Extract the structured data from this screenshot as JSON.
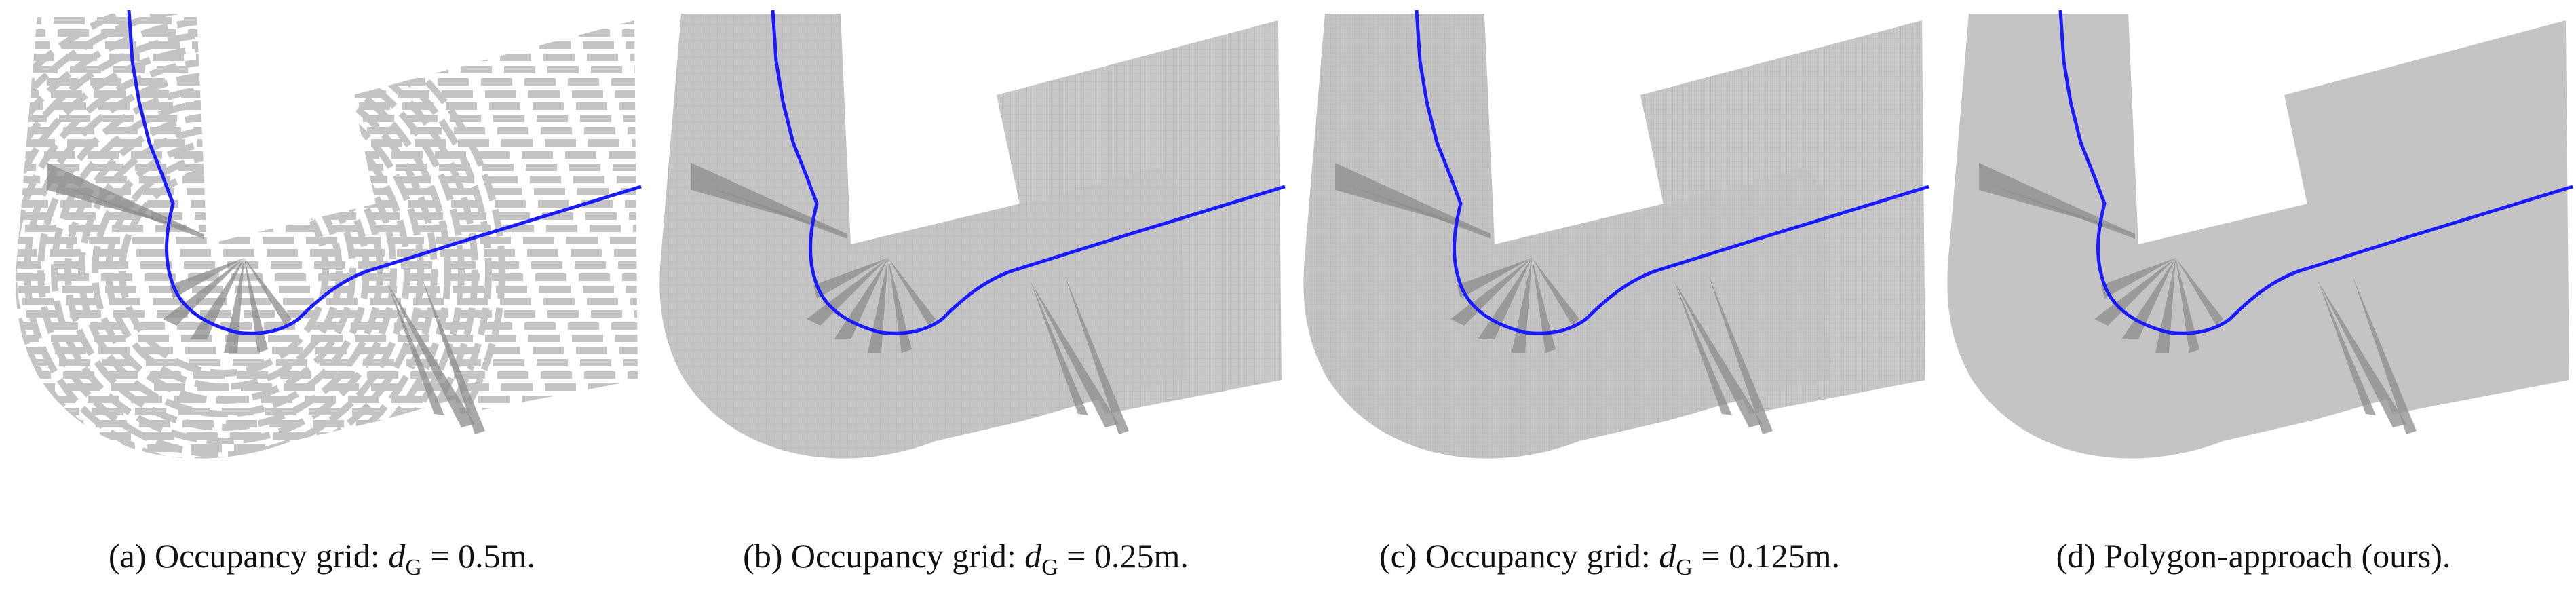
{
  "figure": {
    "panels": [
      {
        "id": "a",
        "caption_prefix": "(a) Occupancy grid: ",
        "math_var": "d",
        "math_sub": "G",
        "caption_suffix": " = 0.5m.",
        "style": "coarse-grid"
      },
      {
        "id": "b",
        "caption_prefix": "(b) Occupancy grid: ",
        "math_var": "d",
        "math_sub": "G",
        "caption_suffix": " = 0.25m.",
        "style": "medium-grid"
      },
      {
        "id": "c",
        "caption_prefix": "(c) Occupancy grid: ",
        "math_var": "d",
        "math_sub": "G",
        "caption_suffix": " = 0.125m.",
        "style": "fine-grid"
      },
      {
        "id": "d",
        "caption_prefix": "(d) Polygon-approach (ours).",
        "math_var": "",
        "math_sub": "",
        "caption_suffix": "",
        "style": "polygon"
      }
    ],
    "colors": {
      "occupied": "#c4c4c4",
      "occupied_dark": "#8c8c8c",
      "grid_line": "#b3b3b3",
      "trajectory": "#1a1aff",
      "background": "#ffffff"
    }
  }
}
